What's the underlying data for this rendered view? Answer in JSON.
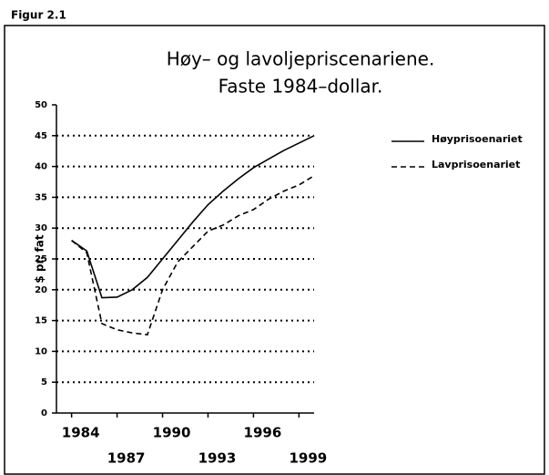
{
  "chart_data": {
    "type": "line",
    "figure_label": "Figur 2.1",
    "title": "Høy– og lavoljepriscenariene.",
    "subtitle": "Faste 1984–dollar.",
    "y_label": "$ pr. fat",
    "x": [
      1984,
      1985,
      1986,
      1987,
      1988,
      1989,
      1990,
      1991,
      1992,
      1993,
      1994,
      1995,
      1996,
      1997,
      1998,
      1999,
      2000
    ],
    "series": [
      {
        "name": "Høyprisoenariet",
        "color": "#000000",
        "dash": false,
        "values": [
          28,
          26.3,
          18.7,
          18.8,
          20,
          22,
          25,
          28,
          31,
          33.8,
          36,
          38,
          39.8,
          41.2,
          42.6,
          43.8,
          45
        ]
      },
      {
        "name": "Lavprisoenariet",
        "color": "#000000",
        "dash": true,
        "values": [
          28,
          26,
          14.5,
          13.5,
          13,
          12.7,
          20,
          24.5,
          27,
          29.5,
          30.5,
          32,
          33,
          34.7,
          36,
          37,
          38.5
        ]
      }
    ],
    "xlim": [
      1983,
      2000
    ],
    "xticks": [
      1984,
      1987,
      1990,
      1993,
      1996,
      1999
    ],
    "ylim": [
      0,
      50
    ],
    "yticks": [
      0,
      5,
      10,
      15,
      20,
      25,
      30,
      35,
      40,
      45,
      50
    ],
    "grid": true,
    "legend": "right"
  }
}
